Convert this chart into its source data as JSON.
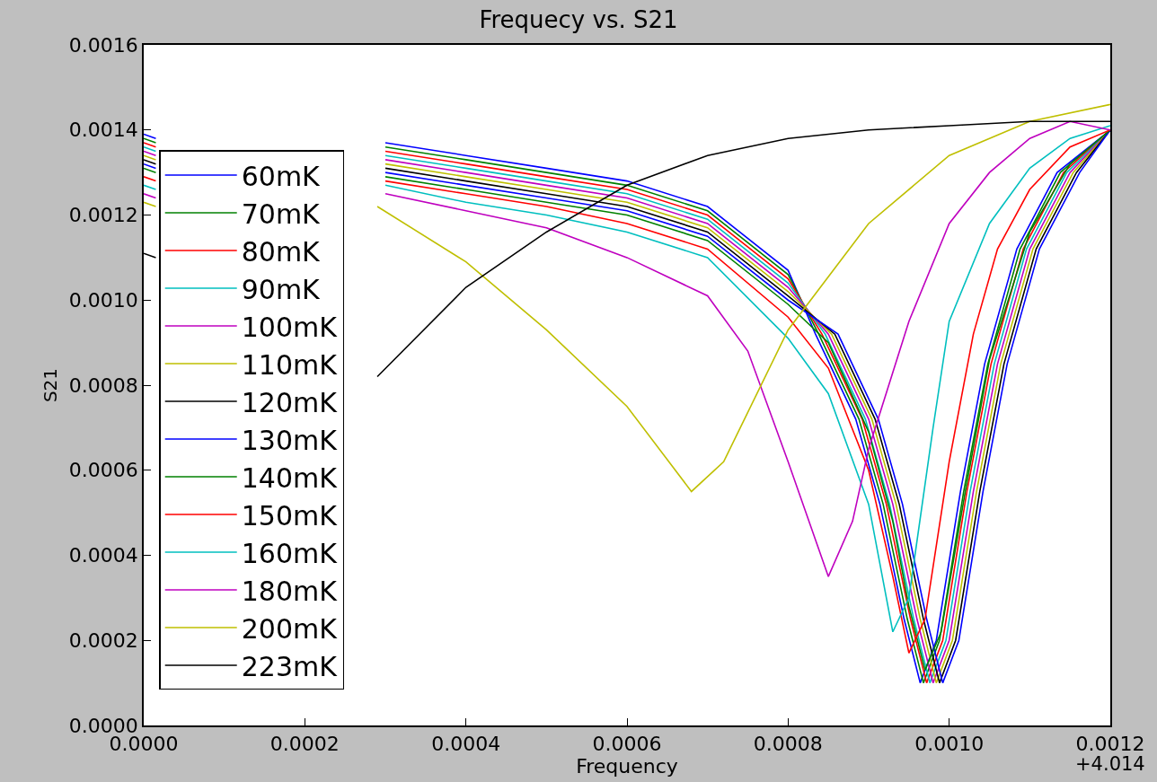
{
  "chart_data": {
    "type": "line",
    "title": "Frequecy vs. S21",
    "xlabel": "Frequency",
    "ylabel": "S21",
    "annotations": [
      "+4.014"
    ],
    "xlim": [
      0,
      0.0012
    ],
    "xticks": [
      {
        "value": 0,
        "label": "0.0000"
      },
      {
        "value": 0.0002,
        "label": "0.0002"
      },
      {
        "value": 0.0004,
        "label": "0.0004"
      },
      {
        "value": 0.0006,
        "label": "0.0006"
      },
      {
        "value": 0.0008,
        "label": "0.0008"
      },
      {
        "value": 0.001,
        "label": "0.0010"
      },
      {
        "value": 0.0012,
        "label": "0.0012"
      }
    ],
    "ylim": [
      0,
      0.0016
    ],
    "yticks": [
      {
        "value": 0,
        "label": "0.0000"
      },
      {
        "value": 0.0002,
        "label": "0.0002"
      },
      {
        "value": 0.0004,
        "label": "0.0004"
      },
      {
        "value": 0.0006,
        "label": "0.0006"
      },
      {
        "value": 0.0008,
        "label": "0.0008"
      },
      {
        "value": 0.001,
        "label": "0.0010"
      },
      {
        "value": 0.0012,
        "label": "0.0012"
      },
      {
        "value": 0.0014,
        "label": "0.0014"
      },
      {
        "value": 0.0016,
        "label": "0.0016"
      }
    ],
    "grid": false,
    "legend": "left",
    "line_style": "solid",
    "marker": "none",
    "series": [
      {
        "name": "60mK",
        "color": "#0000ff",
        "x": [
          0,
          1.5e-05,
          0.00015,
          0.0003,
          0.0004,
          0.0005,
          0.0006,
          0.0007,
          0.0008,
          0.000834,
          0.000884,
          0.000914,
          0.000944,
          0.000964,
          0.000984,
          0.001014,
          0.001044,
          0.001084,
          0.001134,
          0.0012
        ],
        "values": [
          0.00139,
          0.00138,
          null,
          0.00137,
          0.00134,
          0.00131,
          0.00128,
          0.00122,
          0.00107,
          0.00092,
          0.00072,
          0.00052,
          0.00025,
          0.0001,
          0.0002,
          0.00055,
          0.00085,
          0.00112,
          0.0013,
          0.0014
        ]
      },
      {
        "name": "70mK",
        "color": "#008000",
        "x": [
          0,
          1.5e-05,
          0.00015,
          0.0003,
          0.0004,
          0.0005,
          0.0006,
          0.0007,
          0.0008,
          0.000838,
          0.000888,
          0.000918,
          0.000948,
          0.000968,
          0.000988,
          0.001018,
          0.001048,
          0.001088,
          0.001138,
          0.0012
        ],
        "values": [
          0.00138,
          0.00137,
          null,
          0.00136,
          0.00133,
          0.0013,
          0.00127,
          0.00121,
          0.00106,
          0.00092,
          0.00072,
          0.00052,
          0.00025,
          0.0001,
          0.0002,
          0.00055,
          0.00085,
          0.00112,
          0.0013,
          0.0014
        ]
      },
      {
        "name": "80mK",
        "color": "#ff0000",
        "x": [
          0,
          1.5e-05,
          0.00015,
          0.0003,
          0.0004,
          0.0005,
          0.0006,
          0.0007,
          0.0008,
          0.000842,
          0.000892,
          0.000922,
          0.000952,
          0.000972,
          0.000992,
          0.001022,
          0.001052,
          0.001092,
          0.001142,
          0.0012
        ],
        "values": [
          0.00137,
          0.00136,
          null,
          0.00135,
          0.00132,
          0.00129,
          0.00126,
          0.0012,
          0.00105,
          0.00092,
          0.00072,
          0.00052,
          0.00025,
          0.0001,
          0.0002,
          0.00055,
          0.00085,
          0.00112,
          0.0013,
          0.0014
        ]
      },
      {
        "name": "90mK",
        "color": "#00bfbf",
        "x": [
          0,
          1.5e-05,
          0.00015,
          0.0003,
          0.0004,
          0.0005,
          0.0006,
          0.0007,
          0.0008,
          0.000846,
          0.000896,
          0.000926,
          0.000956,
          0.000976,
          0.000996,
          0.001026,
          0.001056,
          0.001096,
          0.001146,
          0.0012
        ],
        "values": [
          0.00136,
          0.00135,
          null,
          0.00134,
          0.00131,
          0.00128,
          0.00125,
          0.00119,
          0.00104,
          0.00092,
          0.00072,
          0.00052,
          0.00025,
          0.0001,
          0.0002,
          0.00055,
          0.00085,
          0.00112,
          0.0013,
          0.0014
        ]
      },
      {
        "name": "100mK",
        "color": "#bf00bf",
        "x": [
          0,
          1.5e-05,
          0.00015,
          0.0003,
          0.0004,
          0.0005,
          0.0006,
          0.0007,
          0.0008,
          0.00085,
          0.0009,
          0.00093,
          0.00096,
          0.00098,
          0.001,
          0.00103,
          0.00106,
          0.0011,
          0.00115,
          0.0012
        ],
        "values": [
          0.00135,
          0.00134,
          null,
          0.00133,
          0.0013,
          0.00127,
          0.00124,
          0.00118,
          0.00103,
          0.00092,
          0.00072,
          0.00052,
          0.00025,
          0.0001,
          0.0002,
          0.00055,
          0.00085,
          0.00112,
          0.0013,
          0.0014
        ]
      },
      {
        "name": "110mK",
        "color": "#bfbf00",
        "x": [
          0,
          1.5e-05,
          0.00015,
          0.0003,
          0.0004,
          0.0005,
          0.0006,
          0.0007,
          0.0008,
          0.000854,
          0.000904,
          0.000934,
          0.000964,
          0.000984,
          0.001004,
          0.001034,
          0.001064,
          0.001104,
          0.001154,
          0.0012
        ],
        "values": [
          0.00134,
          0.00133,
          null,
          0.00132,
          0.00129,
          0.00126,
          0.00123,
          0.00117,
          0.00102,
          0.00092,
          0.00072,
          0.00052,
          0.00025,
          0.0001,
          0.0002,
          0.00055,
          0.00085,
          0.00112,
          0.0013,
          0.0014
        ]
      },
      {
        "name": "120mK",
        "color": "#000000",
        "x": [
          0,
          1.5e-05,
          0.00015,
          0.0003,
          0.0004,
          0.0005,
          0.0006,
          0.0007,
          0.0008,
          0.000858,
          0.000908,
          0.000938,
          0.000968,
          0.000988,
          0.001008,
          0.001038,
          0.001068,
          0.001108,
          0.001158,
          0.0012
        ],
        "values": [
          0.00133,
          0.00132,
          null,
          0.00131,
          0.00128,
          0.00125,
          0.00122,
          0.00116,
          0.00101,
          0.00092,
          0.00072,
          0.00052,
          0.00025,
          0.0001,
          0.0002,
          0.00055,
          0.00085,
          0.00112,
          0.0013,
          0.0014
        ]
      },
      {
        "name": "130mK",
        "color": "#0000ff",
        "x": [
          0,
          1.5e-05,
          0.00015,
          0.0003,
          0.0004,
          0.0005,
          0.0006,
          0.0007,
          0.0008,
          0.000862,
          0.000912,
          0.000942,
          0.000972,
          0.000992,
          0.001012,
          0.001042,
          0.001072,
          0.001112,
          0.001162,
          0.0012
        ],
        "values": [
          0.00132,
          0.00131,
          null,
          0.0013,
          0.00127,
          0.00124,
          0.00121,
          0.00115,
          0.001,
          0.00092,
          0.00072,
          0.00052,
          0.00025,
          0.0001,
          0.0002,
          0.00055,
          0.00085,
          0.00112,
          0.0013,
          0.0014
        ]
      },
      {
        "name": "140mK",
        "color": "#008000",
        "x": [
          0,
          1.5e-05,
          0.00015,
          0.0003,
          0.0004,
          0.0005,
          0.0006,
          0.0007,
          0.0008,
          0.00085,
          0.0009,
          0.00093,
          0.00095,
          0.00097,
          0.00099,
          0.00102,
          0.00105,
          0.0011,
          0.00115,
          0.0012
        ],
        "values": [
          0.00131,
          0.0013,
          null,
          0.00129,
          0.00126,
          0.00123,
          0.0012,
          0.00114,
          0.00099,
          0.0009,
          0.00069,
          0.00048,
          0.00028,
          0.00013,
          0.00022,
          0.00055,
          0.00086,
          0.00116,
          0.00132,
          0.0014
        ]
      },
      {
        "name": "150mK",
        "color": "#ff0000",
        "x": [
          0,
          1.5e-05,
          0.00015,
          0.0003,
          0.0004,
          0.0005,
          0.0006,
          0.0007,
          0.0008,
          0.00085,
          0.0009,
          0.00093,
          0.00095,
          0.00097,
          0.001,
          0.00103,
          0.00106,
          0.0011,
          0.00115,
          0.0012
        ],
        "values": [
          0.00129,
          0.00128,
          null,
          0.00128,
          0.00125,
          0.00122,
          0.00118,
          0.00112,
          0.00096,
          0.00084,
          0.0006,
          0.00035,
          0.00017,
          0.00025,
          0.00062,
          0.00092,
          0.00112,
          0.00126,
          0.00136,
          0.0014
        ]
      },
      {
        "name": "160mK",
        "color": "#00bfbf",
        "x": [
          0,
          1.5e-05,
          0.00015,
          0.0003,
          0.0004,
          0.0005,
          0.0006,
          0.0007,
          0.0008,
          0.00085,
          0.0009,
          0.00093,
          0.00095,
          0.00098,
          0.001,
          0.00105,
          0.0011,
          0.00115,
          0.0012
        ],
        "values": [
          0.00127,
          0.00126,
          null,
          0.00127,
          0.00123,
          0.0012,
          0.00116,
          0.0011,
          0.00091,
          0.00078,
          0.00052,
          0.00022,
          0.0003,
          0.0007,
          0.00095,
          0.00118,
          0.00131,
          0.00138,
          0.00141
        ]
      },
      {
        "name": "180mK",
        "color": "#bf00bf",
        "x": [
          0,
          1.5e-05,
          0.00015,
          0.0003,
          0.0004,
          0.0005,
          0.0006,
          0.0007,
          0.00075,
          0.0008,
          0.00085,
          0.00088,
          0.0009,
          0.00095,
          0.001,
          0.00105,
          0.0011,
          0.00115,
          0.0012
        ],
        "values": [
          0.00125,
          0.00124,
          null,
          0.00125,
          0.00121,
          0.00117,
          0.0011,
          0.00101,
          0.00088,
          0.00062,
          0.00035,
          0.00048,
          0.00065,
          0.00095,
          0.00118,
          0.0013,
          0.00138,
          0.00142,
          0.0014
        ]
      },
      {
        "name": "200mK",
        "color": "#bfbf00",
        "x": [
          0,
          1.5e-05,
          0.00015,
          0.00029,
          0.0004,
          0.0005,
          0.0006,
          0.00068,
          0.00072,
          0.0008,
          0.0009,
          0.001,
          0.0011,
          0.0012
        ],
        "values": [
          0.00123,
          0.00122,
          null,
          0.00122,
          0.00109,
          0.00093,
          0.00075,
          0.00055,
          0.00062,
          0.00093,
          0.00118,
          0.00134,
          0.00142,
          0.00146
        ]
      },
      {
        "name": "223mK",
        "color": "#000000",
        "x": [
          0,
          1.5e-05,
          0.00015,
          0.00029,
          0.0004,
          0.0005,
          0.0006,
          0.0007,
          0.0008,
          0.0009,
          0.001,
          0.0011,
          0.0012
        ],
        "values": [
          0.00111,
          0.0011,
          null,
          0.00082,
          0.00103,
          0.00116,
          0.00127,
          0.00134,
          0.00138,
          0.0014,
          0.00141,
          0.00142,
          0.00142
        ]
      }
    ]
  }
}
